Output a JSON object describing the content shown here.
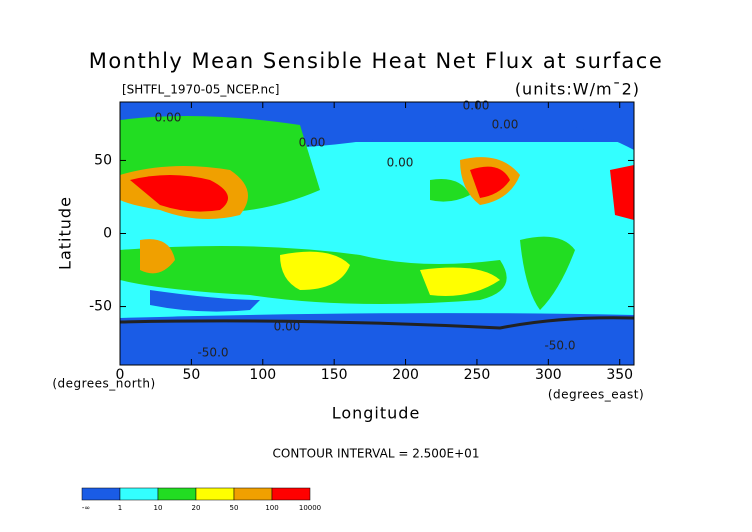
{
  "chart_data": {
    "type": "contour",
    "title": "Monthly Mean Sensible Heat Net Flux at surface",
    "subtitle": "[SHTFL_1970-05_NCEP.nc]",
    "units": "(units:W/m¯2)",
    "x_label": "Longitude",
    "y_label": "Latitude",
    "x_unit": "(degrees_east)",
    "y_unit": "(degrees_north)",
    "xlim": [
      0,
      360
    ],
    "xticks": [
      0,
      50,
      100,
      150,
      200,
      250,
      300,
      350
    ],
    "ylim": [
      -90,
      90
    ],
    "yticks": [
      -50,
      0,
      50
    ],
    "contour_interval": "CONTOUR INTERVAL = 2.500E+01",
    "annotations": [
      "0.00",
      "0.00",
      "0.00",
      "0.00",
      "0.00",
      "0.00",
      "-50.0",
      "-50.0"
    ],
    "colorbar": {
      "colors": [
        "#1a5ce6",
        "#33ffff",
        "#22dd22",
        "#ffff00",
        "#f0a000",
        "#ff0000"
      ],
      "labels": [
        "-∞",
        1,
        10,
        20,
        50,
        100,
        10000
      ]
    }
  }
}
